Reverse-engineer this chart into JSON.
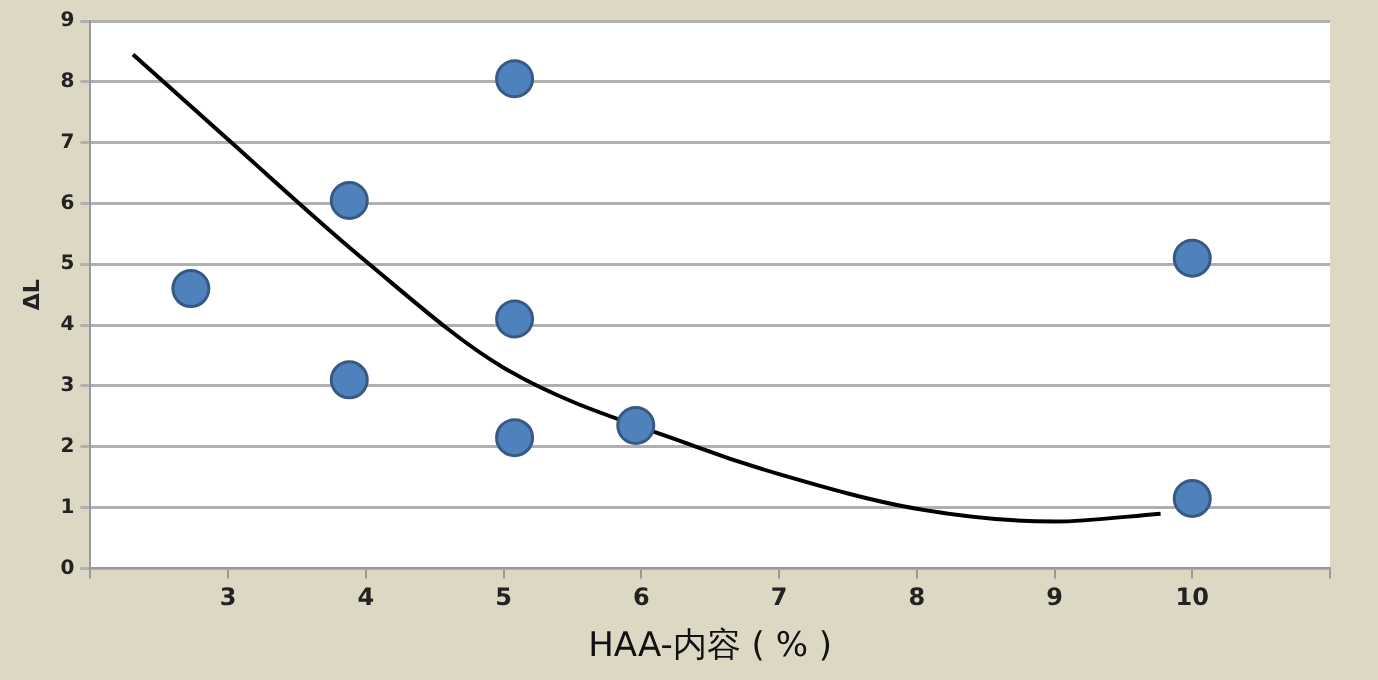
{
  "chart_data": {
    "type": "scatter",
    "xlabel": "HAA-内容 ( % )",
    "ylabel": "ΔL",
    "xlim": [
      2,
      11
    ],
    "xticks": [
      {
        "value": 2,
        "label": null
      },
      3,
      4,
      5,
      6,
      7,
      8,
      9,
      10,
      {
        "value": 11,
        "label": null
      }
    ],
    "ylim": [
      0,
      9
    ],
    "yticks": [
      0,
      1,
      2,
      3,
      4,
      5,
      6,
      7,
      8,
      9
    ],
    "grid": "y",
    "legend": false,
    "series": [
      {
        "type": "scatter",
        "color": "#4f81bd",
        "marker": "circle",
        "x": [
          2.73,
          3.88,
          3.88,
          5.08,
          5.08,
          5.08,
          5.96,
          10.0,
          10.0
        ],
        "values": [
          4.6,
          6.05,
          3.1,
          8.05,
          4.1,
          2.15,
          2.35,
          5.1,
          1.15
        ]
      },
      {
        "type": "line",
        "color": "#000000",
        "marker": "none",
        "line_style": "solid",
        "x": [
          2.31,
          3,
          4,
          5,
          6.4,
          7,
          8,
          9,
          9.77
        ],
        "values": [
          8.45,
          7.05,
          5.05,
          3.3,
          2.0,
          1.55,
          0.98,
          0.77,
          0.9
        ]
      }
    ]
  }
}
